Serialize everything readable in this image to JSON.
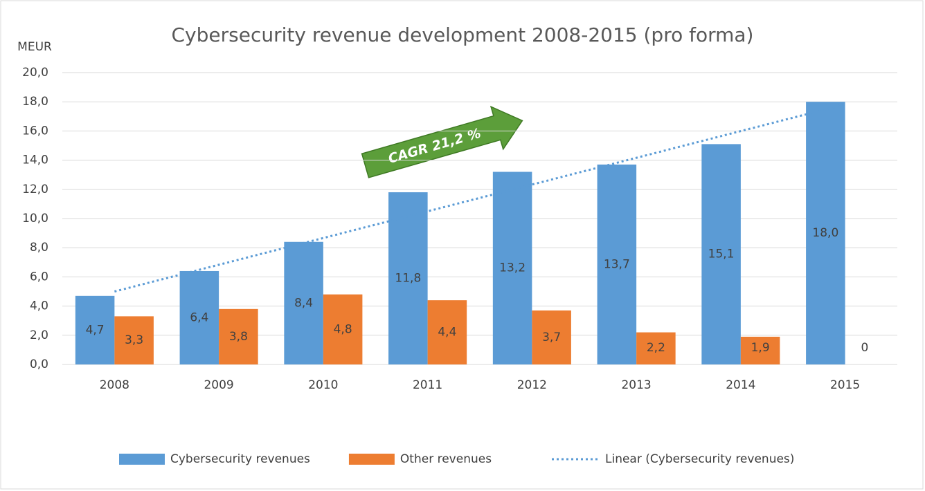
{
  "chart_data": {
    "type": "bar",
    "title": "Cybersecurity revenue development 2008-2015 (pro forma)",
    "y_label": "MEUR",
    "annotation": "CAGR 21,2 %",
    "categories": [
      "2008",
      "2009",
      "2010",
      "2011",
      "2012",
      "2013",
      "2014",
      "2015"
    ],
    "series": [
      {
        "name": "Cybersecurity revenues",
        "color": "#5b9bd5",
        "values": [
          4.7,
          6.4,
          8.4,
          11.8,
          13.2,
          13.7,
          15.1,
          18.0
        ],
        "value_labels": [
          "4,7",
          "6,4",
          "8,4",
          "11,8",
          "13,2",
          "13,7",
          "15,1",
          "18,0"
        ],
        "trendline": {
          "name": "Linear (Cybersecurity revenues)",
          "color": "#5b9bd5"
        }
      },
      {
        "name": "Other revenues",
        "color": "#ed7d31",
        "values": [
          3.3,
          3.8,
          4.8,
          4.4,
          3.7,
          2.2,
          1.9,
          0
        ],
        "value_labels": [
          "3,3",
          "3,8",
          "4,8",
          "4,4",
          "3,7",
          "2,2",
          "1,9",
          "0"
        ]
      }
    ],
    "ylim": [
      0,
      20
    ],
    "yticks": [
      {
        "value": 0,
        "label": "0,0"
      },
      {
        "value": 2,
        "label": "2,0"
      },
      {
        "value": 4,
        "label": "4,0"
      },
      {
        "value": 6,
        "label": "6,0"
      },
      {
        "value": 8,
        "label": "8,0"
      },
      {
        "value": 10,
        "label": "10,0"
      },
      {
        "value": 12,
        "label": "12,0"
      },
      {
        "value": 14,
        "label": "14,0"
      },
      {
        "value": 16,
        "label": "16,0"
      },
      {
        "value": 18,
        "label": "18,0"
      },
      {
        "value": 20,
        "label": "20,0"
      }
    ],
    "grid": true,
    "legend": "bottom"
  }
}
